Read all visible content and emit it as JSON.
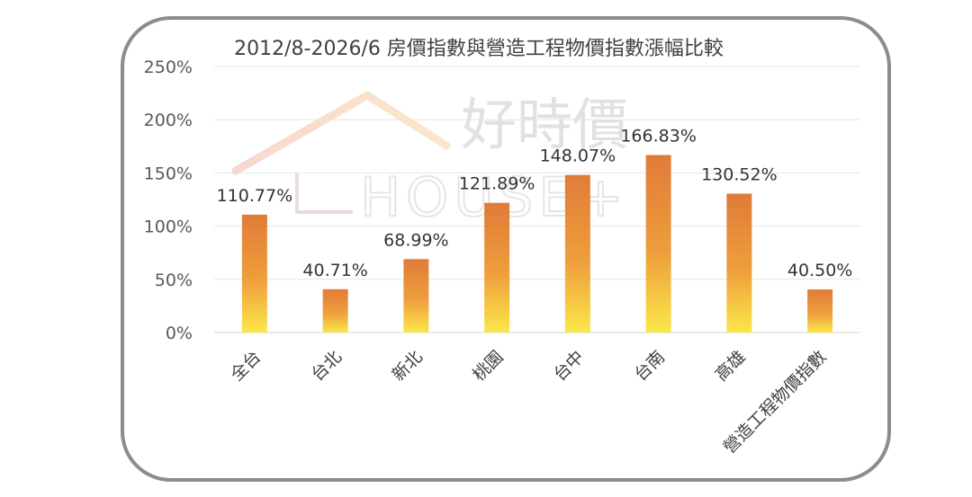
{
  "chart_data": {
    "type": "bar",
    "title": "2012/8-2026/6 房價指數與營造工程物價指數漲幅比較",
    "categories": [
      "全台",
      "台北",
      "新北",
      "桃園",
      "台中",
      "台南",
      "高雄",
      "營造工程物價指數"
    ],
    "values": [
      110.77,
      40.71,
      68.99,
      121.89,
      148.07,
      166.83,
      130.52,
      40.5
    ],
    "data_labels": [
      "110.77%",
      "40.71%",
      "68.99%",
      "121.89%",
      "148.07%",
      "166.83%",
      "130.52%",
      "40.50%"
    ],
    "ylim": [
      0,
      250
    ],
    "yticks": [
      0,
      50,
      100,
      150,
      200,
      250
    ],
    "ytick_labels": [
      "0%",
      "50%",
      "100%",
      "150%",
      "200%",
      "250%"
    ],
    "xlabel": "",
    "ylabel": "",
    "grid": true,
    "bar_gradient": {
      "top": "#e07b39",
      "bottom": "#fbe74a"
    }
  },
  "watermark": {
    "brand": "好時價",
    "brand_latin": "HOUSE+"
  }
}
